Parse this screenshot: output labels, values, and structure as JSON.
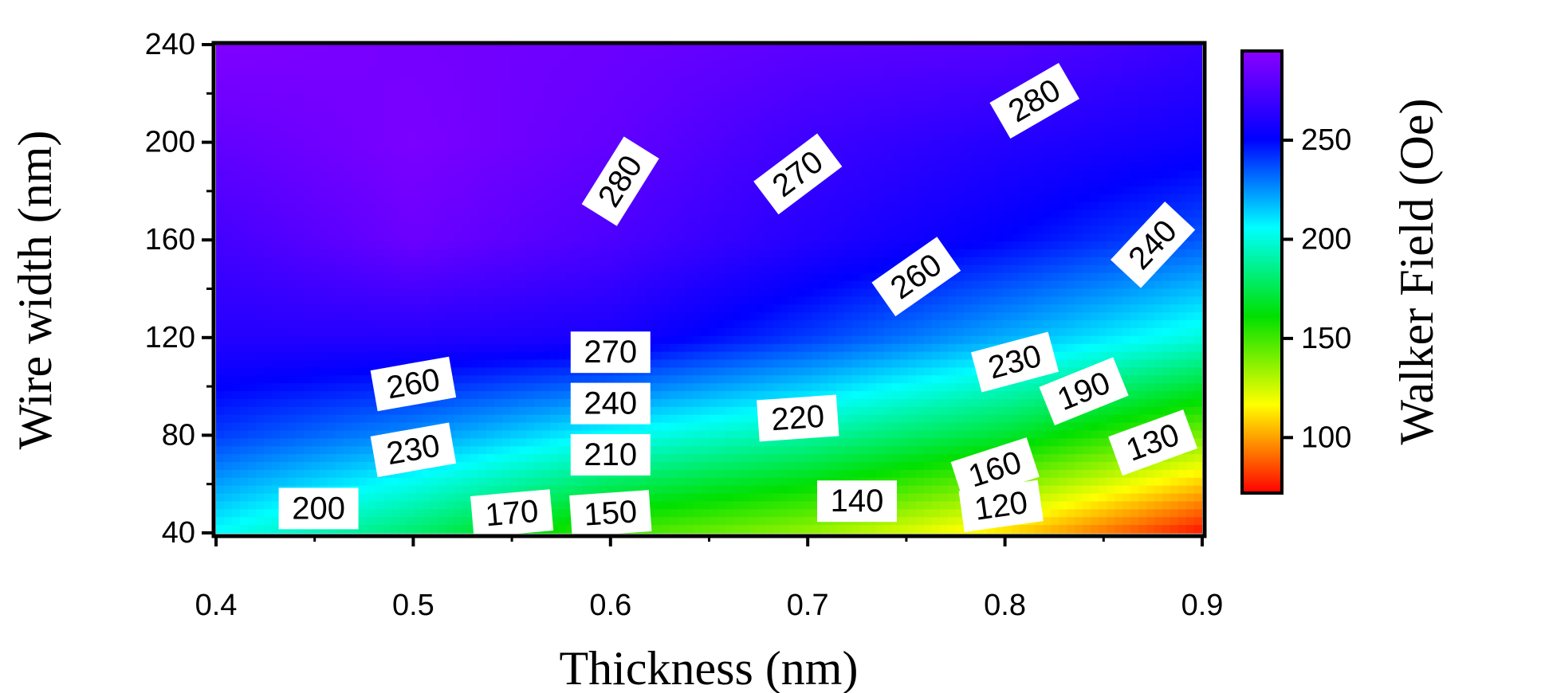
{
  "chart_data": {
    "type": "heatmap",
    "subtype": "filled-contour",
    "title": "",
    "xlabel": "Thickness (nm)",
    "ylabel": "Wire width (nm)",
    "xlim": [
      0.4,
      0.9
    ],
    "ylim": [
      40,
      240
    ],
    "x_ticks": [
      "0.4",
      "0.5",
      "0.6",
      "0.7",
      "0.8",
      "0.9"
    ],
    "y_ticks": [
      "40",
      "80",
      "120",
      "160",
      "200",
      "240"
    ],
    "colorbar": {
      "label": "Walker Field (Oe)",
      "range": [
        72,
        295
      ],
      "ticks": [
        "100",
        "150",
        "200",
        "250"
      ],
      "colormap": [
        "#ff0000",
        "#ffff00",
        "#00e000",
        "#00ffff",
        "#0000ff",
        "#8a00ff"
      ]
    },
    "x": [
      0.4,
      0.5,
      0.6,
      0.7,
      0.8,
      0.9
    ],
    "y": [
      40,
      80,
      120,
      160,
      200,
      240
    ],
    "z": [
      [
        205,
        180,
        150,
        135,
        110,
        75
      ],
      [
        240,
        225,
        205,
        190,
        170,
        140
      ],
      [
        262,
        262,
        258,
        240,
        220,
        200
      ],
      [
        272,
        285,
        275,
        262,
        250,
        235
      ],
      [
        282,
        290,
        282,
        270,
        262,
        255
      ],
      [
        292,
        288,
        285,
        280,
        278,
        268
      ]
    ],
    "contour_labels": [
      {
        "text": "280",
        "x": 0.605,
        "y": 184,
        "angle": -58
      },
      {
        "text": "270",
        "x": 0.695,
        "y": 187,
        "angle": -37
      },
      {
        "text": "280",
        "x": 0.815,
        "y": 217,
        "angle": -30
      },
      {
        "text": "260",
        "x": 0.755,
        "y": 145,
        "angle": -35
      },
      {
        "text": "240",
        "x": 0.875,
        "y": 158,
        "angle": -47
      },
      {
        "text": "270",
        "x": 0.6,
        "y": 114,
        "angle": 0
      },
      {
        "text": "260",
        "x": 0.5,
        "y": 101,
        "angle": -10
      },
      {
        "text": "240",
        "x": 0.6,
        "y": 93,
        "angle": 0
      },
      {
        "text": "230",
        "x": 0.805,
        "y": 110,
        "angle": -15
      },
      {
        "text": "190",
        "x": 0.84,
        "y": 98,
        "angle": -22
      },
      {
        "text": "220",
        "x": 0.695,
        "y": 87,
        "angle": -4
      },
      {
        "text": "230",
        "x": 0.5,
        "y": 74,
        "angle": -10
      },
      {
        "text": "210",
        "x": 0.6,
        "y": 72,
        "angle": 0
      },
      {
        "text": "130",
        "x": 0.875,
        "y": 77,
        "angle": -20
      },
      {
        "text": "160",
        "x": 0.795,
        "y": 66,
        "angle": -18
      },
      {
        "text": "200",
        "x": 0.452,
        "y": 50,
        "angle": 0
      },
      {
        "text": "170",
        "x": 0.55,
        "y": 48,
        "angle": -5
      },
      {
        "text": "150",
        "x": 0.6,
        "y": 48,
        "angle": -4
      },
      {
        "text": "140",
        "x": 0.725,
        "y": 53,
        "angle": 0
      },
      {
        "text": "120",
        "x": 0.798,
        "y": 51,
        "angle": -8
      }
    ]
  }
}
